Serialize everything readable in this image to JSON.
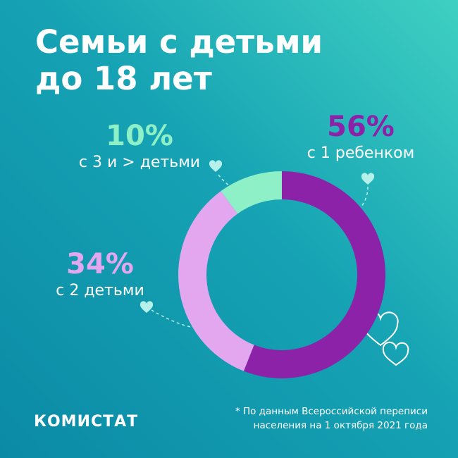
{
  "chart_data": {
    "type": "pie",
    "title": "Семьи с детьми до 18 лет",
    "categories": [
      "с 1 ребенком",
      "с 2 детьми",
      "с 3 и > детьми"
    ],
    "values": [
      56,
      34,
      10
    ],
    "value_labels": [
      "56%",
      "34%",
      "10%"
    ],
    "colors": [
      "#8c22a8",
      "#e2a7ef",
      "#8ef0c7"
    ],
    "brand": "КОМИСТАТ",
    "footnote": "* По данным Всероссийской переписи населения на 1 октября  2021 года"
  }
}
